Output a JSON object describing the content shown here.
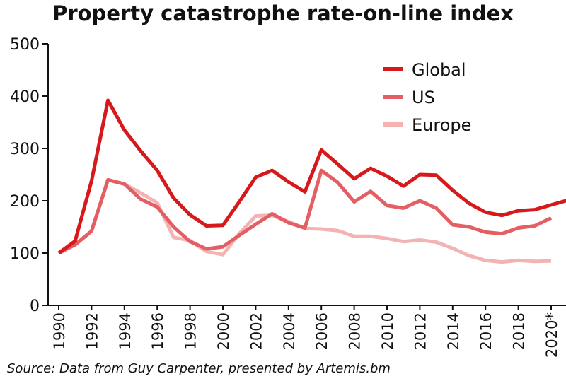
{
  "chart_data": {
    "type": "line",
    "title": "Property catastrophe rate-on-line index",
    "source": "Source: Data from Guy Carpenter, presented by Artemis.bm",
    "xlabel": "",
    "ylabel": "",
    "ylim": [
      0,
      500
    ],
    "xlim": [
      1990,
      2021
    ],
    "yticks": [
      "0",
      "100",
      "200",
      "300",
      "400",
      "500"
    ],
    "x_tick_labels": [
      "1990",
      "1992",
      "1994",
      "1996",
      "1998",
      "2000",
      "2002",
      "2004",
      "2006",
      "2008",
      "2010",
      "2012",
      "2014",
      "2016",
      "2018",
      "2020*"
    ],
    "x_tick_values": [
      1990,
      1992,
      1994,
      1996,
      1998,
      2000,
      2002,
      2004,
      2006,
      2008,
      2010,
      2012,
      2014,
      2016,
      2018,
      2020
    ],
    "legend_position": "top-right",
    "series": [
      {
        "name": "Global",
        "color": "#d7191c",
        "x": [
          1990,
          1991,
          1992,
          1993,
          1994,
          1995,
          1996,
          1997,
          1998,
          1999,
          2000,
          2001,
          2002,
          2003,
          2004,
          2005,
          2006,
          2007,
          2008,
          2009,
          2010,
          2011,
          2012,
          2013,
          2014,
          2015,
          2016,
          2017,
          2018,
          2019,
          2020,
          2021
        ],
        "values": [
          100,
          123,
          238,
          392,
          335,
          295,
          258,
          205,
          173,
          152,
          153,
          198,
          245,
          258,
          236,
          217,
          297,
          270,
          242,
          262,
          247,
          228,
          250,
          249,
          220,
          195,
          178,
          172,
          181,
          183,
          192,
          201
        ]
      },
      {
        "name": "US",
        "color": "#e35f63",
        "x": [
          1990,
          1991,
          1992,
          1993,
          1994,
          1995,
          1996,
          1997,
          1998,
          1999,
          2000,
          2001,
          2002,
          2003,
          2004,
          2005,
          2006,
          2007,
          2008,
          2009,
          2010,
          2011,
          2012,
          2013,
          2014,
          2015,
          2016,
          2017,
          2018,
          2019,
          2020
        ],
        "values": [
          100,
          116,
          142,
          240,
          232,
          203,
          188,
          150,
          122,
          108,
          112,
          134,
          155,
          175,
          158,
          148,
          258,
          235,
          198,
          218,
          191,
          186,
          200,
          186,
          154,
          150,
          140,
          137,
          148,
          152,
          167
        ]
      },
      {
        "name": "Europe",
        "color": "#f4b3b3",
        "x": [
          1990,
          1991,
          1992,
          1993,
          1994,
          1995,
          1996,
          1997,
          1998,
          1999,
          2000,
          2001,
          2002,
          2003,
          2004,
          2005,
          2006,
          2007,
          2008,
          2009,
          2010,
          2011,
          2012,
          2013,
          2014,
          2015,
          2016,
          2017,
          2018,
          2019,
          2020
        ],
        "values": [
          100,
          116,
          142,
          240,
          232,
          215,
          196,
          130,
          124,
          103,
          97,
          137,
          171,
          172,
          160,
          147,
          146,
          143,
          132,
          132,
          128,
          122,
          125,
          121,
          109,
          95,
          86,
          83,
          86,
          84,
          85
        ]
      }
    ]
  }
}
